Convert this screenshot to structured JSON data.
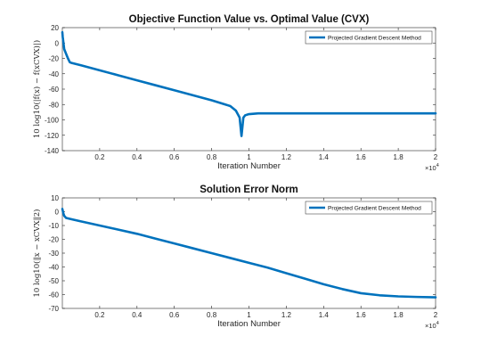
{
  "chart_data": [
    {
      "type": "line",
      "title": "Objective Function Value vs. Optimal Value (CVX)",
      "xlabel": "Iteration Number",
      "ylabel": "10 log10(|f(x) − f(xCVX)|)",
      "x_exponent_base": "×10",
      "x_exponent_power": "4",
      "xlim": [
        0,
        2
      ],
      "ylim": [
        -140,
        20
      ],
      "xticks": [
        0.2,
        0.4,
        0.6,
        0.8,
        1,
        1.2,
        1.4,
        1.6,
        1.8,
        2
      ],
      "xtick_labels": [
        "0.2",
        "0.4",
        "0.6",
        "0.8",
        "1",
        "1.2",
        "1.4",
        "1.6",
        "1.8",
        "2"
      ],
      "yticks": [
        20,
        0,
        -20,
        -40,
        -60,
        -80,
        -100,
        -120,
        -140
      ],
      "ytick_labels": [
        "20",
        "0",
        "-20",
        "-40",
        "-60",
        "-80",
        "-100",
        "-120",
        "-140"
      ],
      "legend_position": "top-right",
      "series": [
        {
          "name": "Projected Gradient Descent Method",
          "color": "#0072BD",
          "x": [
            0,
            0.002,
            0.005,
            0.01,
            0.02,
            0.03,
            0.04,
            0.05,
            0.1,
            0.2,
            0.3,
            0.4,
            0.5,
            0.6,
            0.7,
            0.8,
            0.9,
            0.93,
            0.95,
            0.96,
            0.97,
            0.98,
            1.0,
            1.05,
            1.1,
            1.2,
            1.4,
            1.6,
            1.8,
            2.0
          ],
          "y": [
            14,
            8,
            2,
            -8,
            -14,
            -20,
            -25,
            -26,
            -29,
            -35.5,
            -42,
            -48.5,
            -55,
            -61.5,
            -68,
            -74.5,
            -82,
            -88,
            -97,
            -121,
            -97,
            -94,
            -92.5,
            -91.5,
            -91.5,
            -91.5,
            -91.5,
            -91.5,
            -91.5,
            -91.5
          ]
        }
      ]
    },
    {
      "type": "line",
      "title": "Solution Error Norm",
      "xlabel": "Iteration Number",
      "ylabel": "10 log10(‖x − xCVX‖2)",
      "x_exponent_base": "×10",
      "x_exponent_power": "4",
      "xlim": [
        0,
        2
      ],
      "ylim": [
        -70,
        10
      ],
      "xticks": [
        0.2,
        0.4,
        0.6,
        0.8,
        1,
        1.2,
        1.4,
        1.6,
        1.8,
        2
      ],
      "xtick_labels": [
        "0.2",
        "0.4",
        "0.6",
        "0.8",
        "1",
        "1.2",
        "1.4",
        "1.6",
        "1.8",
        "2"
      ],
      "yticks": [
        10,
        0,
        -10,
        -20,
        -30,
        -40,
        -50,
        -60,
        -70
      ],
      "ytick_labels": [
        "10",
        "0",
        "-10",
        "-20",
        "-30",
        "-40",
        "-50",
        "-60",
        "-70"
      ],
      "legend_position": "top-right",
      "series": [
        {
          "name": "Projected Gradient Descent Method",
          "color": "#0072BD",
          "x": [
            0,
            0.005,
            0.01,
            0.02,
            0.05,
            0.1,
            0.2,
            0.3,
            0.4,
            0.5,
            0.6,
            0.7,
            0.8,
            0.9,
            1.0,
            1.1,
            1.2,
            1.3,
            1.4,
            1.5,
            1.6,
            1.7,
            1.8,
            1.9,
            2.0
          ],
          "y": [
            2,
            -1,
            -3,
            -4.5,
            -5.5,
            -7,
            -10,
            -13,
            -16,
            -19.5,
            -23,
            -26.5,
            -30,
            -33.5,
            -37,
            -40.5,
            -44.5,
            -48.5,
            -52.5,
            -56,
            -59,
            -60.5,
            -61.3,
            -61.7,
            -62
          ]
        }
      ]
    }
  ]
}
